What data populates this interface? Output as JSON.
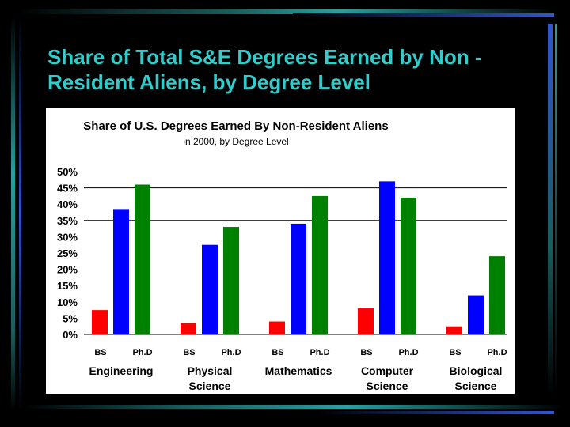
{
  "slide_title": "Share of Total S&E Degrees Earned by Non -Resident Aliens, by Degree Level",
  "colors": {
    "BS": "#ff0000",
    "MS": "#0000ff",
    "PhD": "#008000",
    "title": "#33cccc",
    "accent": "#0000ff"
  },
  "chart_data": {
    "type": "bar",
    "title": "Share of U.S. Degrees Earned By Non-Resident Aliens",
    "subtitle": "in 2000, by Degree Level",
    "groups": [
      {
        "label_line1": "Engineering",
        "label_line2": "",
        "tick_left": "BS",
        "tick_right": "Ph.D",
        "values": [
          7.5,
          38.5,
          46
        ]
      },
      {
        "label_line1": "Physical",
        "label_line2": "Science",
        "tick_left": "BS",
        "tick_right": "Ph.D",
        "values": [
          3.5,
          27.5,
          33
        ]
      },
      {
        "label_line1": "Mathematics",
        "label_line2": "",
        "tick_left": "BS",
        "tick_right": "Ph.D",
        "values": [
          4,
          34,
          42.5
        ]
      },
      {
        "label_line1": "Computer",
        "label_line2": "Science",
        "tick_left": "BS",
        "tick_right": "Ph.D",
        "values": [
          8,
          47,
          42
        ]
      },
      {
        "label_line1": "Biological",
        "label_line2": "Science",
        "tick_left": "BS",
        "tick_right": "Ph.D",
        "values": [
          2.5,
          12,
          24
        ]
      }
    ],
    "y_ticks": [
      "50%",
      "45%",
      "40%",
      "35%",
      "30%",
      "25%",
      "20%",
      "15%",
      "10%",
      "5%",
      "0%"
    ],
    "ylim": [
      0,
      50
    ],
    "grid_lines_at": [
      35,
      45
    ]
  }
}
